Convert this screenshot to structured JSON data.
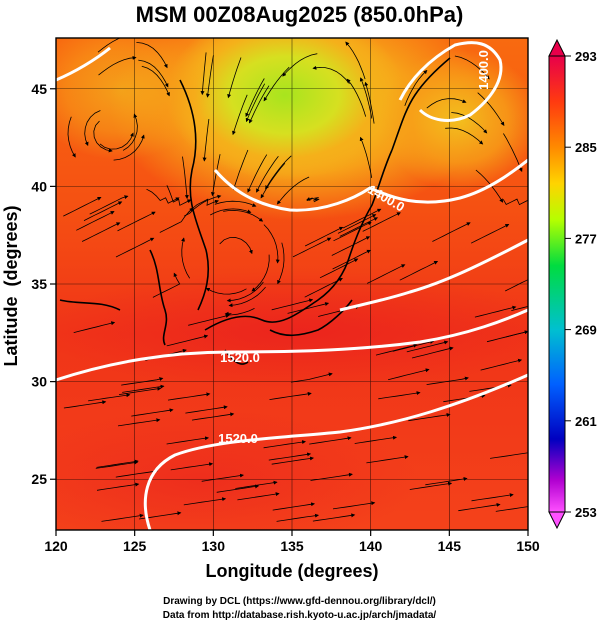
{
  "title": "MSM 00Z08Aug2025 (850.0hPa)",
  "map": {
    "x_axis": {
      "label": "Longitude (degrees)",
      "ticks": [
        "120",
        "125",
        "130",
        "135",
        "140",
        "145",
        "150"
      ]
    },
    "y_axis": {
      "label": "Latitude  (degrees)",
      "ticks": [
        "25",
        "30",
        "35",
        "40",
        "45"
      ]
    },
    "extent": {
      "lon": [
        120,
        150
      ],
      "lat": [
        22.4,
        47.6
      ]
    },
    "contours": [
      {
        "label": "1520.0",
        "level": 1520
      },
      {
        "label": "1520.0",
        "level": 1520
      },
      {
        "label": "1400.0",
        "level": 1400
      },
      {
        "label": "1400.0",
        "level": 1400
      }
    ],
    "colorbar": {
      "ticks": [
        "293",
        "285",
        "277",
        "269",
        "261",
        "253"
      ],
      "colors": [
        "#e8004a",
        "#ff6a00",
        "#ffd000",
        "#b0ff00",
        "#00dd40",
        "#00c8c8",
        "#0060ff",
        "#0000cc",
        "#d000d0",
        "#ff40ff"
      ]
    },
    "field_colors": {
      "warm": "#f02818",
      "orange": "#fa6a12",
      "yellow": "#f0c820",
      "green": "#b4e81e"
    }
  },
  "footer": {
    "line1": "Drawing by DCL (https://www.gfd-dennou.org/library/dcl/)",
    "line2": "Data from http://database.rish.kyoto-u.ac.jp/arch/jmadata/"
  }
}
